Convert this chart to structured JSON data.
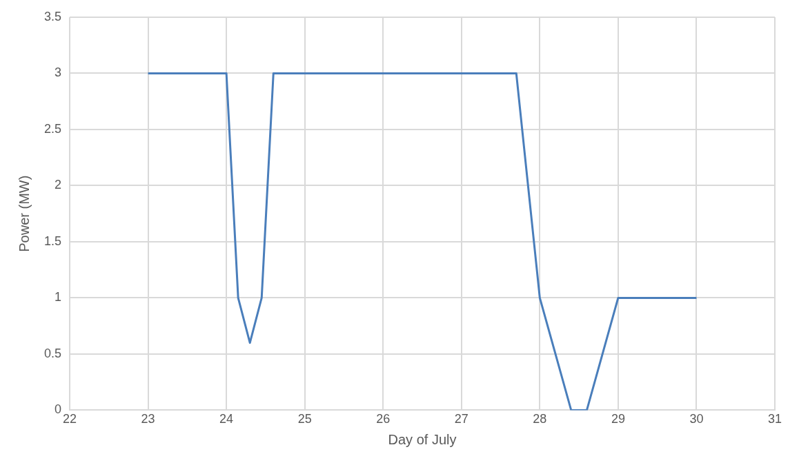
{
  "chart_data": {
    "type": "line",
    "xlabel": "Day of July",
    "ylabel": "Power (MW)",
    "x": [
      23,
      24,
      24.15,
      24.3,
      24.45,
      24.6,
      27.7,
      28,
      28.4,
      28.6,
      29,
      30
    ],
    "series": [
      {
        "color": "#4a7ebb",
        "values": [
          3,
          3,
          1,
          0.6,
          1,
          3,
          3,
          1,
          0,
          0,
          1,
          1
        ]
      }
    ],
    "xlim": [
      22,
      31
    ],
    "xticks": [
      22,
      23,
      24,
      25,
      26,
      27,
      28,
      29,
      30,
      31
    ],
    "ylim": [
      0,
      3.5
    ],
    "yticks": [
      0,
      0.5,
      1,
      1.5,
      2,
      2.5,
      3,
      3.5
    ],
    "grid": true,
    "legend": false,
    "marker": "none",
    "line_style": "solid"
  }
}
